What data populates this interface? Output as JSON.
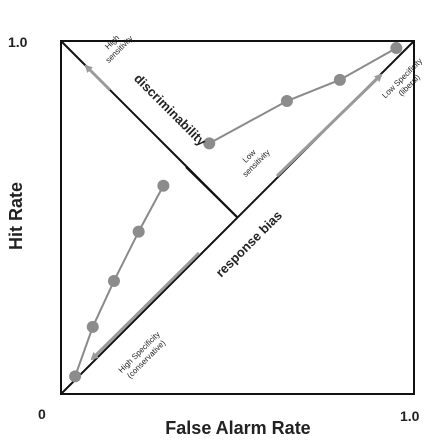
{
  "colors": {
    "axis": "#111111",
    "curve": "#8a8a8a",
    "point": "#8c8c8c",
    "arrow": "#9a9a9a",
    "text": "#222222"
  },
  "chart_data": {
    "type": "line",
    "xlabel": "False Alarm Rate",
    "ylabel": "Hit Rate",
    "xlim": [
      0,
      1
    ],
    "ylim": [
      0,
      1
    ],
    "tick_labels": {
      "origin": "0",
      "x_max": "1.0",
      "y_max": "1.0"
    },
    "series": [
      {
        "points": [
          {
            "x": 0.04,
            "y": 0.05
          },
          {
            "x": 0.09,
            "y": 0.19
          },
          {
            "x": 0.15,
            "y": 0.32
          },
          {
            "x": 0.22,
            "y": 0.46
          },
          {
            "x": 0.29,
            "y": 0.59
          },
          {
            "x": 0.42,
            "y": 0.71
          },
          {
            "x": 0.64,
            "y": 0.83
          },
          {
            "x": 0.79,
            "y": 0.89
          },
          {
            "x": 0.95,
            "y": 0.98
          }
        ]
      }
    ],
    "reference_lines": [
      "chance diagonal",
      "anti-diagonal"
    ],
    "annotations": {
      "discriminability": "discriminability",
      "response_bias": "response bias",
      "high_sensitivity": [
        "High",
        "sensitivity"
      ],
      "low_sensitivity": [
        "Low",
        "sensitivity"
      ],
      "low_specificity": [
        "Low Specificity",
        "(liberal)"
      ],
      "high_specificity": [
        "High Specificity",
        "(conservative)"
      ]
    },
    "grid": false,
    "legend": "none"
  }
}
